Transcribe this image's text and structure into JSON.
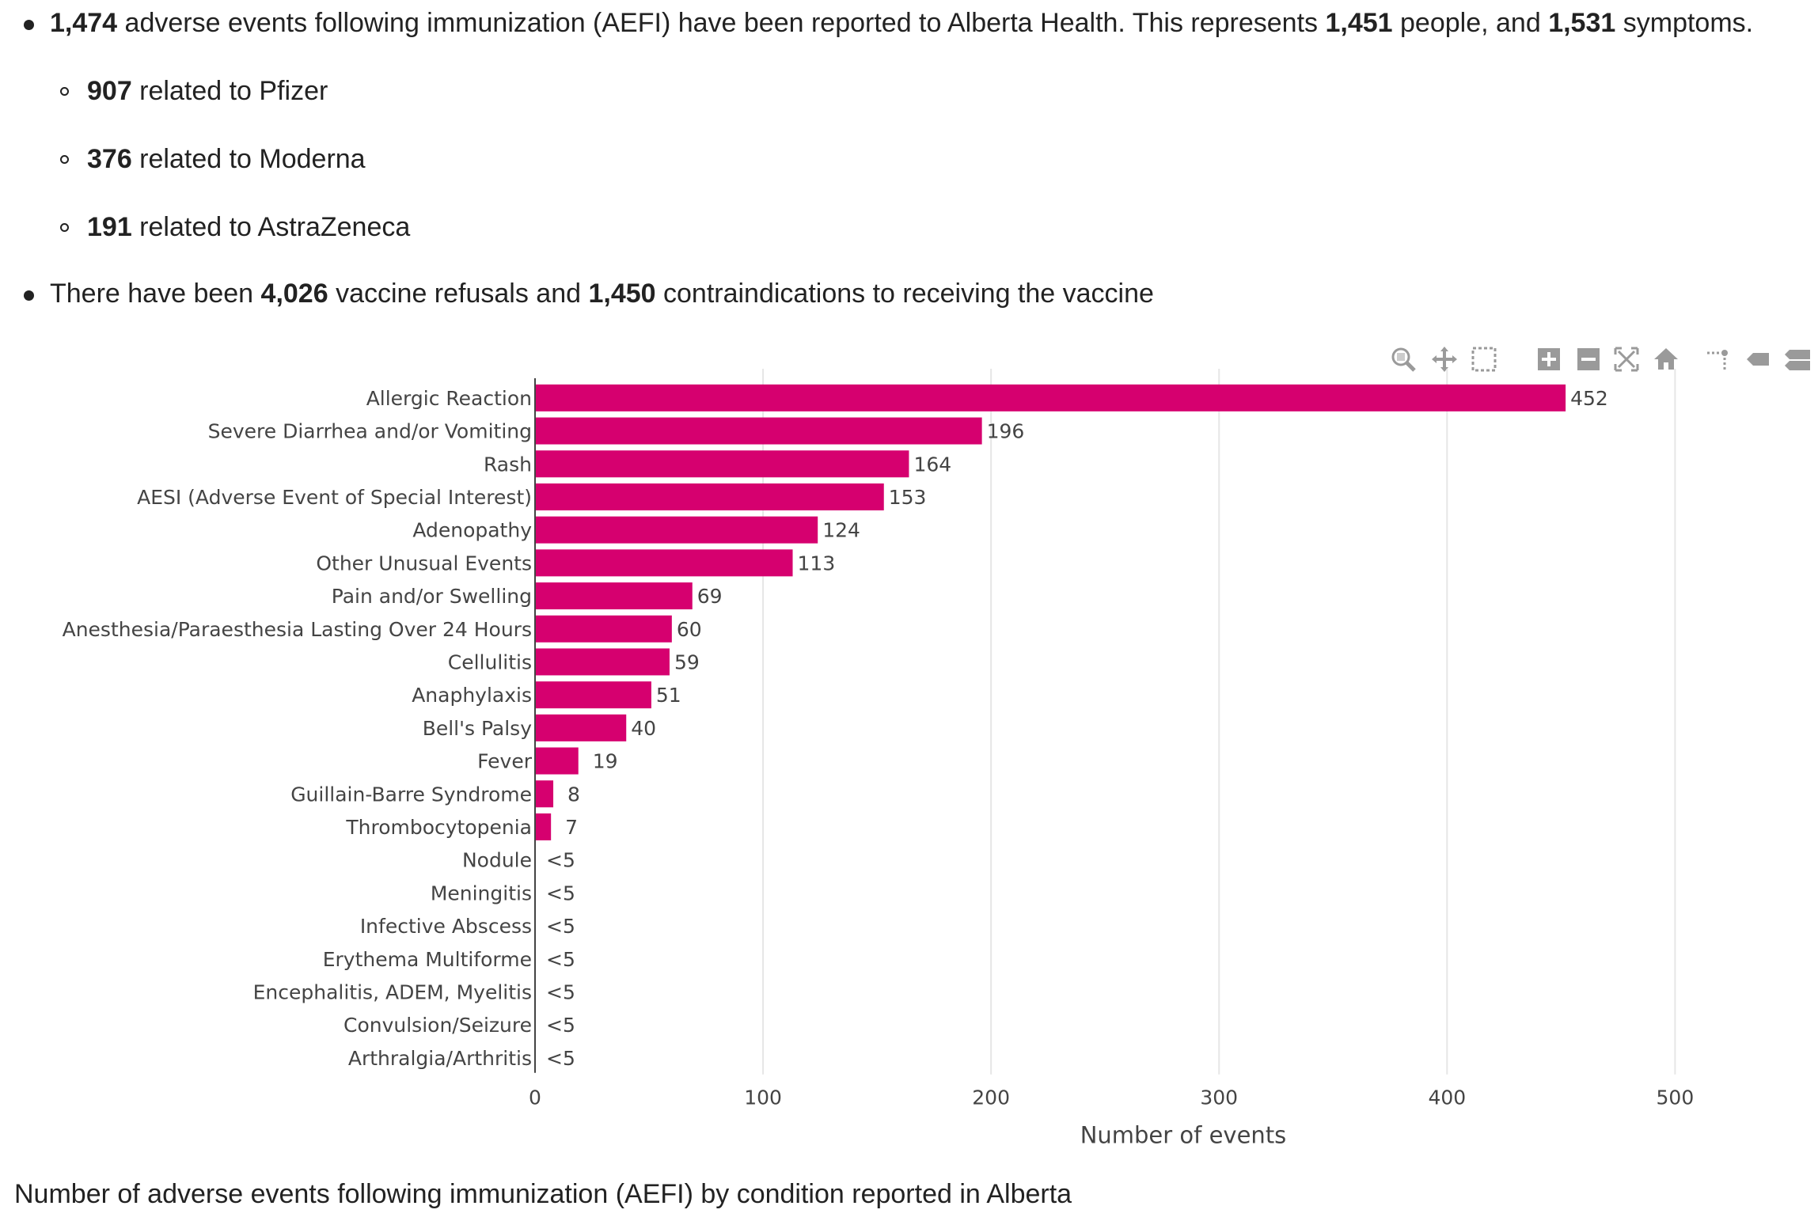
{
  "bullets": {
    "b1": {
      "n1": "1,474",
      "t1": " adverse events following immunization (AEFI) have been reported to Alberta Health. This represents ",
      "n2": "1,451",
      "t2": " people, and ",
      "n3": "1,531",
      "t3": " symptoms."
    },
    "sub": [
      {
        "n": "907",
        "t": " related to Pfizer"
      },
      {
        "n": "376",
        "t": " related to Moderna"
      },
      {
        "n": "191",
        "t": " related to AstraZeneca"
      }
    ],
    "b2": {
      "t1": "There have been ",
      "n1": "4,026",
      "t2": " vaccine refusals and ",
      "n2": "1,450",
      "t3": " contraindications to receiving the vaccine"
    }
  },
  "caption": "Number of adverse events following immunization (AEFI) by condition reported in Alberta",
  "modebar_icons": [
    "zoom-icon",
    "pan-icon",
    "box-select-icon",
    "zoom-in-icon",
    "zoom-out-icon",
    "autoscale-icon",
    "reset-axes-icon",
    "spike-lines-icon",
    "hover-closest-icon",
    "hover-compare-icon"
  ],
  "chart_data": {
    "type": "bar",
    "orientation": "horizontal",
    "bar_color": "#d6006f",
    "categories": [
      "Allergic Reaction",
      "Severe Diarrhea and/or Vomiting",
      "Rash",
      "AESI (Adverse Event of Special Interest)",
      "Adenopathy",
      "Other Unusual Events",
      "Pain and/or Swelling",
      "Anesthesia/Paraesthesia Lasting Over 24 Hours",
      "Cellulitis",
      "Anaphylaxis",
      "Bell's Palsy",
      "Fever",
      "Guillain-Barre Syndrome",
      "Thrombocytopenia",
      "Nodule",
      "Meningitis",
      "Infective Abscess",
      "Erythema Multiforme",
      "Encephalitis, ADEM, Myelitis",
      "Convulsion/Seizure",
      "Arthralgia/Arthritis"
    ],
    "values": [
      452,
      196,
      164,
      153,
      124,
      113,
      69,
      60,
      59,
      51,
      40,
      19,
      8,
      7,
      0,
      0,
      0,
      0,
      0,
      0,
      0
    ],
    "value_labels": [
      "452",
      "196",
      "164",
      "153",
      "124",
      "113",
      "69",
      "60",
      "59",
      "51",
      "40",
      "19",
      "8",
      "7",
      "<5",
      "<5",
      "<5",
      "<5",
      "<5",
      "<5",
      "<5"
    ],
    "xlabel": "Number of events",
    "xlim": [
      0,
      520
    ],
    "xticks": [
      0,
      100,
      200,
      300,
      400,
      500
    ],
    "xtick_labels": [
      "0",
      "100",
      "200",
      "300",
      "400",
      "500"
    ],
    "grid": true
  }
}
